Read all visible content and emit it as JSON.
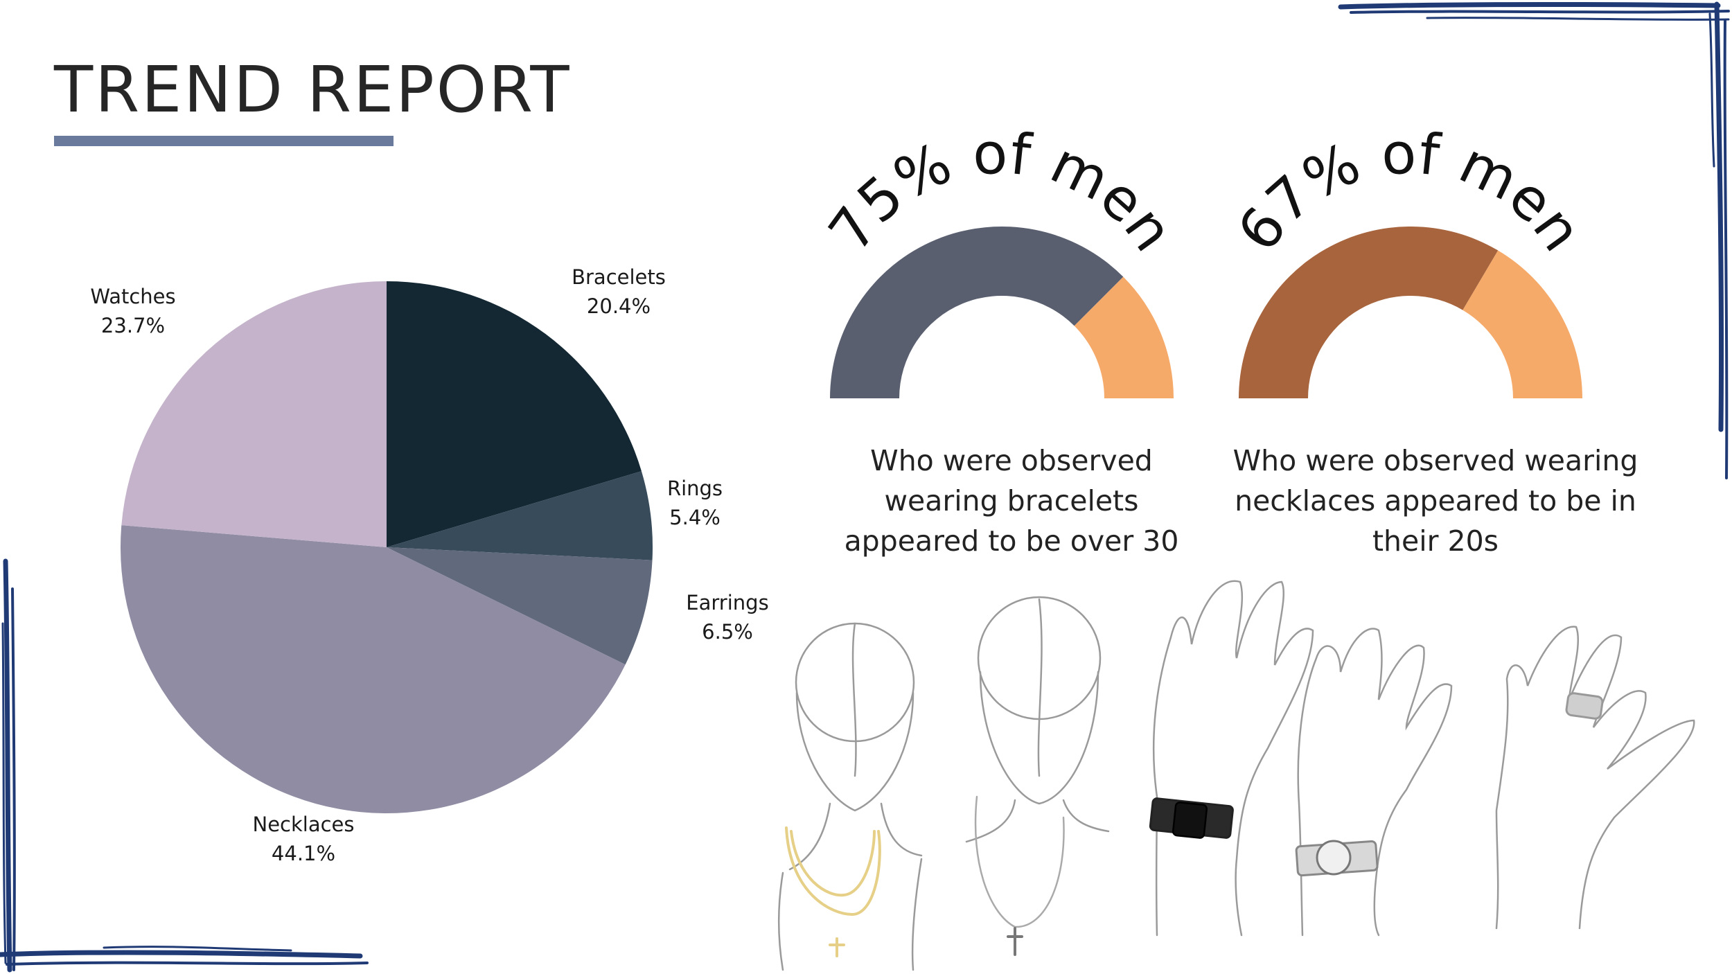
{
  "header": {
    "title": "TREND REPORT"
  },
  "colors": {
    "underline": "#6a7a9c",
    "border_scribble": "#1f3a75",
    "gauge_rest": "#f6aa6a",
    "gauge_bracelets": "#5a5f70",
    "gauge_necklaces": "#a8643c"
  },
  "chart_data": [
    {
      "type": "pie",
      "title": "",
      "start": "12 o'clock",
      "direction": "clockwise",
      "slices": [
        {
          "label": "Bracelets",
          "value": 20.4,
          "value_label": "20.4%",
          "color": "#142834"
        },
        {
          "label": "Rings",
          "value": 5.4,
          "value_label": "5.4%",
          "color": "#374b5b"
        },
        {
          "label": "Earrings",
          "value": 6.5,
          "value_label": "6.5%",
          "color": "#61697c"
        },
        {
          "label": "Necklaces",
          "value": 44.1,
          "value_label": "44.1%",
          "color": "#908ca3"
        },
        {
          "label": "Watches",
          "value": 23.7,
          "value_label": "23.7%",
          "color": "#c4b3ca"
        }
      ]
    },
    {
      "type": "gauge",
      "percent": 75,
      "headline": "75% of men",
      "caption_lines": [
        "Who were observed",
        "wearing bracelets",
        "appeared to be over 30"
      ]
    },
    {
      "type": "gauge",
      "percent": 67,
      "headline": "67% of men",
      "caption_lines": [
        "Who were observed wearing",
        "necklaces appeared to be in",
        "their 20s"
      ]
    }
  ],
  "illustrations": [
    {
      "name": "head-with-gold-chain-sketch"
    },
    {
      "name": "head-with-cross-necklace-sketch"
    },
    {
      "name": "hand-with-black-bracelet-sketch"
    },
    {
      "name": "hand-with-watch-sketch"
    },
    {
      "name": "hand-with-ring-sketch"
    }
  ]
}
